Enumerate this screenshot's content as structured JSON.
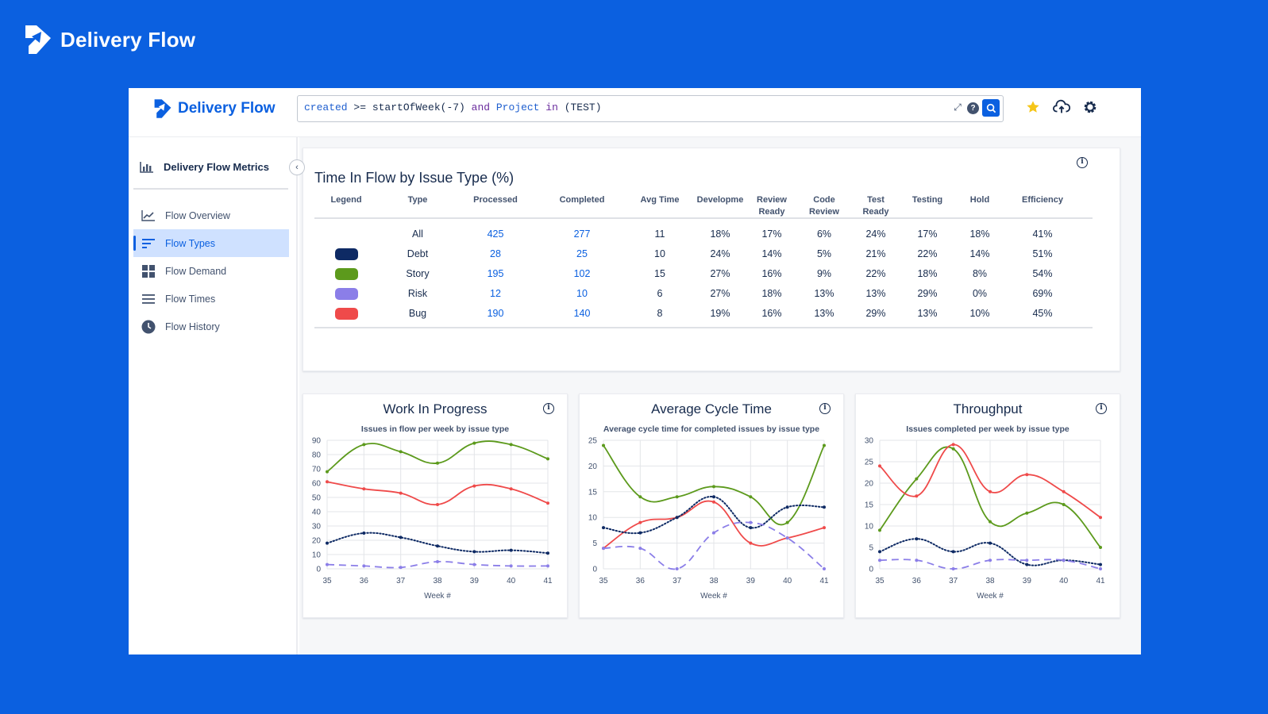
{
  "brand": {
    "name": "Delivery Flow"
  },
  "query": {
    "kw1": "created",
    "op": " >= ",
    "fn": "startOfWeek(-7) ",
    "and": "and",
    "kw2": " Project ",
    "in": "in",
    "rest": " (TEST)"
  },
  "sidebar": {
    "title": "Delivery Flow Metrics",
    "items": [
      {
        "label": "Flow Overview",
        "icon": "trend-icon"
      },
      {
        "label": "Flow Types",
        "icon": "bars-icon"
      },
      {
        "label": "Flow Demand",
        "icon": "grid-icon"
      },
      {
        "label": "Flow Times",
        "icon": "list-icon"
      },
      {
        "label": "Flow History",
        "icon": "clock-icon"
      }
    ],
    "active_index": 1
  },
  "table": {
    "title": "Time In Flow by Issue Type (%)",
    "headers": [
      "Legend",
      "Type",
      "Processed",
      "Completed",
      "Avg Time",
      "Developme",
      "Review Ready",
      "Code Review",
      "Test Ready",
      "Testing",
      "Hold",
      "Efficiency"
    ],
    "rows": [
      {
        "swatch": "",
        "cells": [
          "All",
          "425",
          "277",
          "11",
          "18%",
          "17%",
          "6%",
          "24%",
          "17%",
          "18%",
          "41%"
        ]
      },
      {
        "swatch": "#0e2a64",
        "cells": [
          "Debt",
          "28",
          "25",
          "10",
          "24%",
          "14%",
          "5%",
          "21%",
          "22%",
          "14%",
          "51%"
        ]
      },
      {
        "swatch": "#5c9a1c",
        "cells": [
          "Story",
          "195",
          "102",
          "15",
          "27%",
          "16%",
          "9%",
          "22%",
          "18%",
          "8%",
          "54%"
        ]
      },
      {
        "swatch": "#8b7ee8",
        "cells": [
          "Risk",
          "12",
          "10",
          "6",
          "27%",
          "18%",
          "13%",
          "13%",
          "29%",
          "0%",
          "69%"
        ]
      },
      {
        "swatch": "#ef4a4a",
        "cells": [
          "Bug",
          "190",
          "140",
          "8",
          "19%",
          "16%",
          "13%",
          "29%",
          "13%",
          "10%",
          "45%"
        ]
      }
    ]
  },
  "colors": {
    "debt": "#0e2a64",
    "story": "#5c9a1c",
    "risk": "#8b7ee8",
    "bug": "#ef4a4a",
    "accent": "#0b60e0"
  },
  "chart_data": [
    {
      "type": "line",
      "title": "Work In Progress",
      "subtitle": "Issues in flow per week by issue type",
      "xlabel": "Week #",
      "x": [
        35,
        36,
        37,
        38,
        39,
        40,
        41
      ],
      "ylim": [
        0,
        90
      ],
      "yticks": [
        0,
        10,
        20,
        30,
        40,
        50,
        60,
        70,
        80,
        90
      ],
      "series": [
        {
          "values": [
            68,
            87,
            82,
            74,
            88,
            87,
            77
          ],
          "color": "#5c9a1c",
          "style": "solid"
        },
        {
          "values": [
            61,
            56,
            53,
            45,
            58,
            56,
            46
          ],
          "color": "#ef4a4a",
          "style": "solid"
        },
        {
          "values": [
            18,
            25,
            22,
            16,
            12,
            13,
            11
          ],
          "color": "#0e2a64",
          "style": "dotted"
        },
        {
          "values": [
            3,
            2,
            1,
            5,
            3,
            2,
            2
          ],
          "color": "#8b7ee8",
          "style": "dashed"
        }
      ]
    },
    {
      "type": "line",
      "title": "Average Cycle Time",
      "subtitle": "Average cycle time for completed issues by issue type",
      "xlabel": "Week #",
      "x": [
        35,
        36,
        37,
        38,
        39,
        40,
        41
      ],
      "ylim": [
        0,
        25
      ],
      "yticks": [
        0,
        5,
        10,
        15,
        20,
        25
      ],
      "series": [
        {
          "values": [
            24,
            14,
            14,
            16,
            14,
            9,
            24
          ],
          "color": "#5c9a1c",
          "style": "solid"
        },
        {
          "values": [
            4,
            9,
            10,
            13,
            5,
            6,
            8
          ],
          "color": "#ef4a4a",
          "style": "solid"
        },
        {
          "values": [
            8,
            7,
            10,
            14,
            8,
            12,
            12
          ],
          "color": "#0e2a64",
          "style": "dotted"
        },
        {
          "values": [
            4,
            4,
            0,
            7,
            9,
            6,
            0
          ],
          "color": "#8b7ee8",
          "style": "dashed"
        }
      ]
    },
    {
      "type": "line",
      "title": "Throughput",
      "subtitle": "Issues completed per week by issue type",
      "xlabel": "Week #",
      "x": [
        35,
        36,
        37,
        38,
        39,
        40,
        41
      ],
      "ylim": [
        0,
        30
      ],
      "yticks": [
        0,
        5,
        10,
        15,
        20,
        25,
        30
      ],
      "series": [
        {
          "values": [
            9,
            21,
            28,
            11,
            13,
            15,
            5
          ],
          "color": "#5c9a1c",
          "style": "solid"
        },
        {
          "values": [
            24,
            17,
            29,
            18,
            22,
            18,
            12
          ],
          "color": "#ef4a4a",
          "style": "solid"
        },
        {
          "values": [
            4,
            7,
            4,
            6,
            1,
            2,
            1
          ],
          "color": "#0e2a64",
          "style": "dotted"
        },
        {
          "values": [
            2,
            2,
            0,
            2,
            2,
            2,
            0
          ],
          "color": "#8b7ee8",
          "style": "dashed"
        }
      ]
    }
  ]
}
